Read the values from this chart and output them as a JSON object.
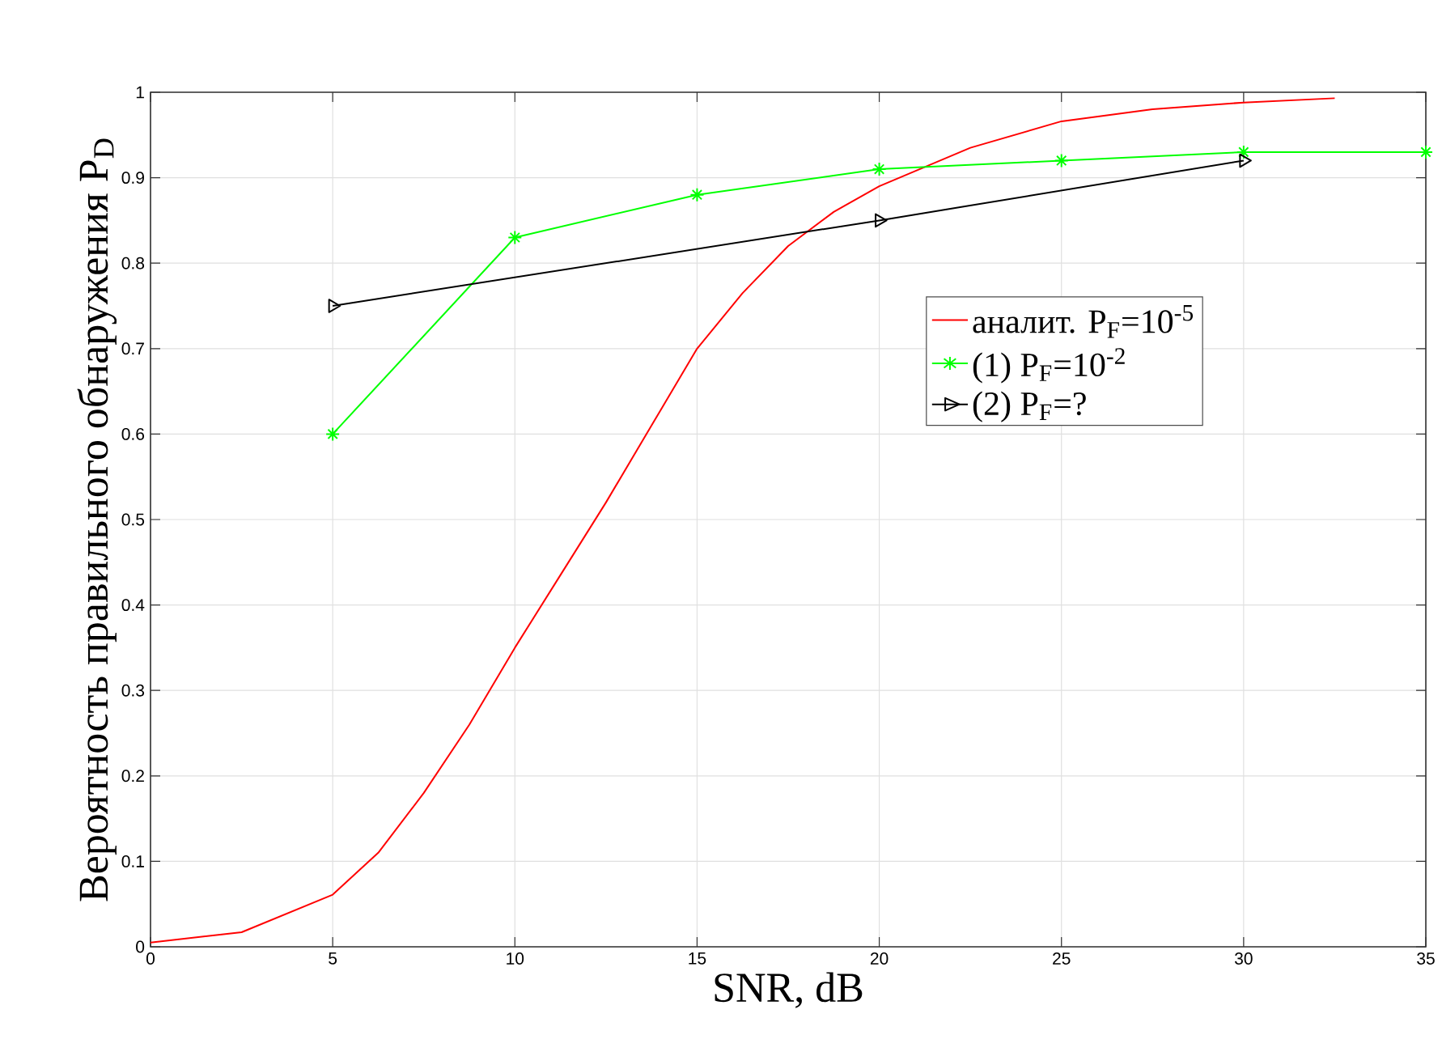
{
  "chart_data": {
    "type": "line",
    "xlabel": "SNR, dB",
    "ylabel": "Вероятность правильного обнаружения P$_{D}$",
    "xlim": [
      0,
      35
    ],
    "ylim": [
      0,
      1
    ],
    "xticks": [
      0,
      5,
      10,
      15,
      20,
      25,
      30,
      35
    ],
    "yticks": [
      0,
      0.1,
      0.2,
      0.3,
      0.4,
      0.5,
      0.6,
      0.7,
      0.8,
      0.9,
      1
    ],
    "grid": true,
    "legend": "right",
    "series": [
      {
        "name": "аналит. P$_{F}$=10$^{-5}$",
        "color": "#ff0000",
        "marker": "none",
        "x": [
          0,
          2.5,
          5,
          6.25,
          7.5,
          8.75,
          10,
          11.25,
          12.5,
          13.75,
          15,
          16.25,
          17.5,
          18.75,
          20,
          22.5,
          25,
          27.5,
          30,
          32.5
        ],
        "values": [
          0.005,
          0.017,
          0.061,
          0.11,
          0.18,
          0.26,
          0.35,
          0.435,
          0.52,
          0.61,
          0.7,
          0.765,
          0.82,
          0.86,
          0.89,
          0.935,
          0.966,
          0.98,
          0.988,
          0.993
        ]
      },
      {
        "name": "(1) P$_{F}$=10$^{-2}$",
        "color": "#00ff00",
        "marker": "cross",
        "x": [
          5,
          10,
          15,
          20,
          25,
          30,
          35
        ],
        "values": [
          0.6,
          0.83,
          0.88,
          0.91,
          0.92,
          0.93,
          0.93
        ]
      },
      {
        "name": "(2) P$_{F}$=?",
        "color": "#000000",
        "marker": "triangle",
        "x": [
          5,
          20,
          30
        ],
        "values": [
          0.75,
          0.85,
          0.92
        ]
      }
    ]
  }
}
